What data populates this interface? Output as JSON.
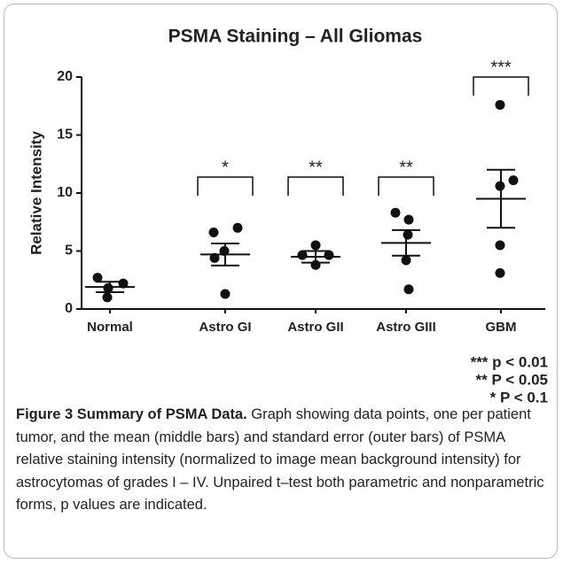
{
  "chart_data": {
    "type": "dotplot",
    "title": "PSMA Staining – All Gliomas",
    "ylabel": "Relative Intensity",
    "categories": [
      "Normal",
      "Astro GI",
      "Astro GII",
      "Astro GIII",
      "GBM"
    ],
    "points": [
      [
        2.7,
        2.2,
        1.8,
        1.0
      ],
      [
        6.6,
        7.0,
        4.4,
        5.0,
        1.3
      ],
      [
        5.5,
        4.65,
        4.65,
        3.8
      ],
      [
        8.3,
        7.7,
        6.4,
        4.2,
        1.7
      ],
      [
        17.6,
        11.1,
        10.6,
        5.5,
        3.1
      ]
    ],
    "mean": [
      1.9,
      4.7,
      4.5,
      5.7,
      9.5
    ],
    "sem": [
      0.45,
      0.95,
      0.5,
      1.1,
      2.5
    ],
    "significance": [
      null,
      "*",
      "**",
      "**",
      "***"
    ],
    "significance_legend": [
      "*** p < 0.01",
      "** P < 0.05",
      "* P < 0.1"
    ],
    "ylim": [
      0,
      20
    ],
    "yticks": [
      0,
      5,
      10,
      15,
      20
    ],
    "color": "#111111"
  },
  "caption": {
    "label": "Figure 3 Summary of PSMA Data.",
    "text": "Graph showing data points, one per patient tumor, and the mean (middle bars) and standard error (outer bars) of PSMA relative staining intensity (normalized to image mean background intensity) for astrocytomas of grades I – IV. Unpaired t–test both parametric and nonparametric forms, p values are indicated."
  }
}
